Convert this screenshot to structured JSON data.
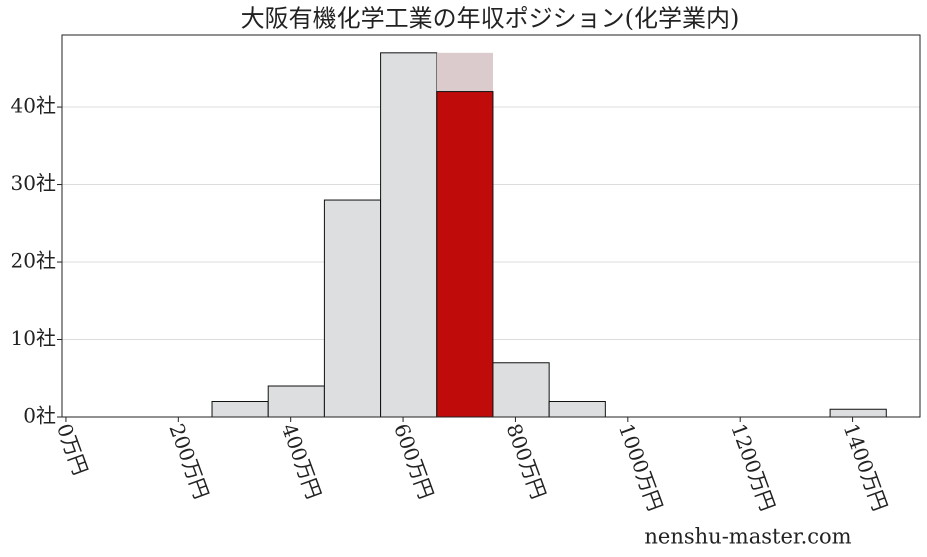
{
  "chart_data": {
    "type": "histogram",
    "title": "大阪有機化学工業の年収ポジション(化学業内)",
    "bins": [
      260,
      360,
      460,
      560,
      660,
      760,
      860,
      960,
      1060,
      1160,
      1260,
      1360,
      1460
    ],
    "values": [
      2,
      4,
      28,
      47,
      42,
      7,
      2,
      0,
      0,
      0,
      0,
      1
    ],
    "color": "#dcdedf",
    "highlight": {
      "index": 4,
      "color": "#c00b0b",
      "band_top": 47,
      "band_color": "#dccbcc"
    },
    "xlim": [
      -7,
      1520
    ],
    "ylim": [
      0,
      49.3
    ],
    "xticks": [
      {
        "value": 0,
        "label": "0万円"
      },
      {
        "value": 200,
        "label": "200万円"
      },
      {
        "value": 400,
        "label": "400万円"
      },
      {
        "value": 600,
        "label": "600万円"
      },
      {
        "value": 800,
        "label": "800万円"
      },
      {
        "value": 1000,
        "label": "1000万円"
      },
      {
        "value": 1200,
        "label": "1200万円"
      },
      {
        "value": 1400,
        "label": "1400万円"
      }
    ],
    "yticks": [
      {
        "value": 0,
        "label": "0社"
      },
      {
        "value": 10,
        "label": "10社"
      },
      {
        "value": 20,
        "label": "20社"
      },
      {
        "value": 30,
        "label": "30社"
      },
      {
        "value": 40,
        "label": "40社"
      }
    ],
    "grid": true,
    "footer": "nenshu-master.com"
  }
}
